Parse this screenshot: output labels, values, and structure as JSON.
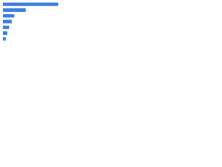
{
  "chart_data": {
    "type": "bar",
    "orientation": "horizontal",
    "categories": [
      null,
      null,
      null,
      null,
      null,
      null,
      null
    ],
    "values": [
      87,
      36,
      18,
      14,
      10,
      7,
      5
    ],
    "color": "#3b7ddd",
    "xlim": [
      0,
      100
    ]
  }
}
